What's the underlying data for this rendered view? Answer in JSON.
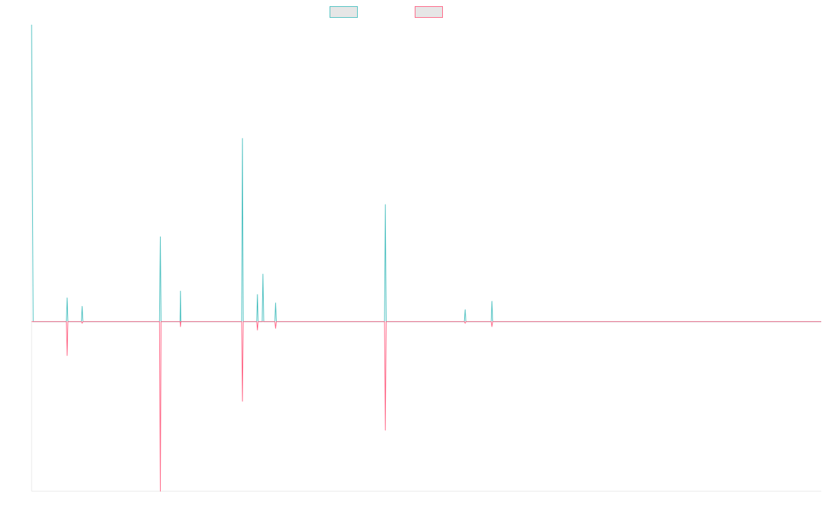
{
  "chart_data": {
    "type": "line",
    "title": "",
    "xlabel": "",
    "ylabel": "",
    "grid": false,
    "legend_position": "top-center",
    "ylim": [
      -1.0,
      1.75
    ],
    "xlim": [
      0,
      1000
    ],
    "baseline": 0,
    "series": [
      {
        "name": "",
        "color": "#4BC0C0",
        "fill": "#E6E6E6",
        "points": [
          [
            0,
            1.75
          ],
          [
            2,
            0
          ],
          [
            44,
            0
          ],
          [
            45,
            0.14
          ],
          [
            46,
            0
          ],
          [
            63,
            0
          ],
          [
            64,
            0.09
          ],
          [
            65,
            0
          ],
          [
            162,
            0
          ],
          [
            163,
            0.5
          ],
          [
            164,
            0
          ],
          [
            188,
            0
          ],
          [
            188.5,
            0.18
          ],
          [
            189,
            0
          ],
          [
            266,
            0
          ],
          [
            267,
            1.08
          ],
          [
            268,
            0
          ],
          [
            285,
            0
          ],
          [
            286,
            0.16
          ],
          [
            287,
            0
          ],
          [
            292,
            0
          ],
          [
            293,
            0.28
          ],
          [
            294,
            0
          ],
          [
            308,
            0
          ],
          [
            309,
            0.11
          ],
          [
            310,
            0
          ],
          [
            447,
            0
          ],
          [
            448,
            0.69
          ],
          [
            449,
            0
          ],
          [
            548,
            0
          ],
          [
            549,
            0.07
          ],
          [
            550,
            0
          ],
          [
            582,
            0
          ],
          [
            583,
            0.12
          ],
          [
            584,
            0
          ],
          [
            1000,
            0
          ]
        ]
      },
      {
        "name": "",
        "color": "#FF6384",
        "fill": "#E6E6E6",
        "points": [
          [
            0,
            0
          ],
          [
            44,
            0
          ],
          [
            45,
            -0.2
          ],
          [
            46,
            0
          ],
          [
            63,
            0
          ],
          [
            64,
            -0.01
          ],
          [
            65,
            0
          ],
          [
            162,
            0
          ],
          [
            163,
            -1.0
          ],
          [
            164,
            0
          ],
          [
            188,
            0
          ],
          [
            188.5,
            -0.03
          ],
          [
            189,
            0
          ],
          [
            266,
            0
          ],
          [
            267,
            -0.47
          ],
          [
            268,
            0
          ],
          [
            285,
            0
          ],
          [
            286,
            -0.05
          ],
          [
            287,
            0
          ],
          [
            308,
            0
          ],
          [
            309,
            -0.04
          ],
          [
            310,
            0
          ],
          [
            447,
            0
          ],
          [
            448,
            -0.64
          ],
          [
            449,
            0
          ],
          [
            548,
            0
          ],
          [
            549,
            -0.01
          ],
          [
            550,
            0
          ],
          [
            582,
            0
          ],
          [
            583,
            -0.03
          ],
          [
            584,
            0
          ],
          [
            1000,
            0
          ]
        ]
      }
    ]
  }
}
